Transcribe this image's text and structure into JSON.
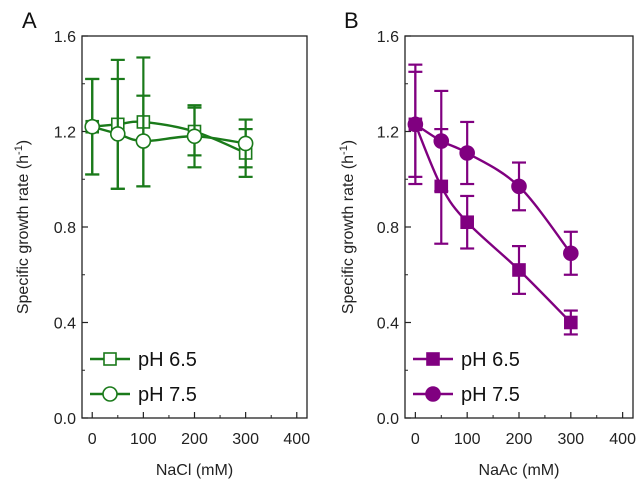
{
  "chart_data": [
    {
      "panel_label": "A",
      "type": "line",
      "xlabel": "NaCl (mM)",
      "ylabel": "Specific growth rate (h",
      "ylabel_sup": "-1",
      "ylabel_end": ")",
      "xlim": [
        -20,
        420
      ],
      "ylim": [
        0.0,
        1.6
      ],
      "xticks": [
        "0",
        "100",
        "200",
        "300",
        "400"
      ],
      "xtick_values": [
        0,
        100,
        200,
        300,
        400
      ],
      "yticks": [
        "0.0",
        "0.4",
        "0.8",
        "1.2",
        "1.6"
      ],
      "ytick_values": [
        0.0,
        0.4,
        0.8,
        1.2,
        1.6
      ],
      "color": "#1a7a1a",
      "legend_position": "bottom-left",
      "series": [
        {
          "name": "pH 6.5",
          "marker": "open-square",
          "x": [
            0,
            50,
            100,
            200,
            300
          ],
          "y": [
            1.22,
            1.23,
            1.24,
            1.2,
            1.11
          ],
          "err": [
            0.2,
            0.27,
            0.27,
            0.1,
            0.1
          ]
        },
        {
          "name": "pH 7.5",
          "marker": "open-circle",
          "x": [
            0,
            50,
            100,
            200,
            300
          ],
          "y": [
            1.22,
            1.19,
            1.16,
            1.18,
            1.15
          ],
          "err": [
            0.2,
            0.23,
            0.19,
            0.13,
            0.1
          ]
        }
      ]
    },
    {
      "panel_label": "B",
      "type": "line",
      "xlabel": "NaAc (mM)",
      "ylabel": "Specific growth rate (h",
      "ylabel_sup": "-1",
      "ylabel_end": ")",
      "xlim": [
        -20,
        420
      ],
      "ylim": [
        0.0,
        1.6
      ],
      "xticks": [
        "0",
        "100",
        "200",
        "300",
        "400"
      ],
      "xtick_values": [
        0,
        100,
        200,
        300,
        400
      ],
      "yticks": [
        "0.0",
        "0.4",
        "0.8",
        "1.2",
        "1.6"
      ],
      "ytick_values": [
        0.0,
        0.4,
        0.8,
        1.2,
        1.6
      ],
      "color": "#800080",
      "legend_position": "bottom-left",
      "series": [
        {
          "name": "pH 6.5",
          "marker": "filled-square",
          "x": [
            0,
            50,
            100,
            200,
            300
          ],
          "y": [
            1.23,
            0.97,
            0.82,
            0.62,
            0.4
          ],
          "err": [
            0.25,
            0.24,
            0.11,
            0.1,
            0.05
          ]
        },
        {
          "name": "pH 7.5",
          "marker": "filled-circle",
          "x": [
            0,
            50,
            100,
            200,
            300
          ],
          "y": [
            1.23,
            1.16,
            1.11,
            0.97,
            0.69
          ],
          "err": [
            0.22,
            0.21,
            0.13,
            0.1,
            0.09
          ]
        }
      ]
    }
  ]
}
